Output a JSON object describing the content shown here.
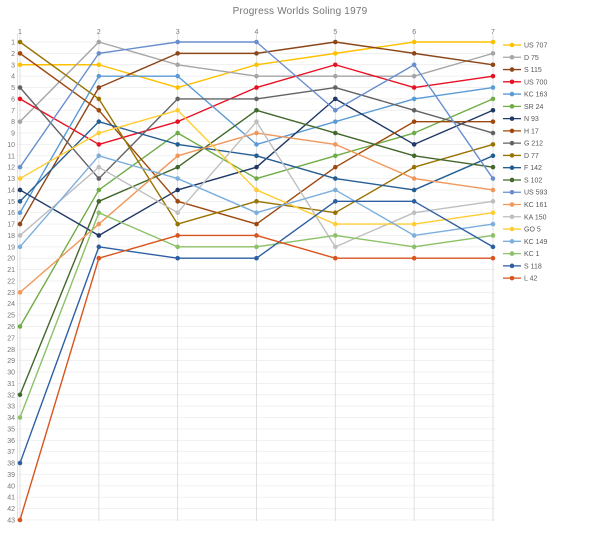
{
  "title": "Progress Worlds Soling 1979",
  "chart_data": {
    "type": "line",
    "subtype": "bump-rank-progression",
    "title": "Progress Worlds Soling 1979",
    "xlabel": "",
    "ylabel": "",
    "x_ticks": [
      1,
      2,
      3,
      4,
      5,
      6,
      7
    ],
    "y_ticks": [
      1,
      2,
      3,
      4,
      5,
      6,
      7,
      8,
      9,
      10,
      11,
      12,
      13,
      14,
      15,
      16,
      17,
      18,
      19,
      20,
      21,
      22,
      23,
      24,
      25,
      26,
      27,
      28,
      29,
      30,
      31,
      32,
      33,
      34,
      35,
      36,
      37,
      38,
      39,
      40,
      41,
      42,
      43
    ],
    "ylim": [
      1,
      43
    ],
    "y_inverted": true,
    "grid": true,
    "legend_position": "right",
    "axis_color": "#757575",
    "gridline_color": "#ebebeb",
    "column_line_color": "#d9d9d9",
    "series": [
      {
        "name": "US 707",
        "color": "#FFC000",
        "ranks": [
          3,
          3,
          5,
          3,
          2,
          1,
          1
        ]
      },
      {
        "name": "D 75",
        "color": "#A5A5A5",
        "ranks": [
          8,
          1,
          3,
          4,
          4,
          4,
          2
        ]
      },
      {
        "name": "S 115",
        "color": "#8C4618",
        "ranks": [
          17,
          5,
          2,
          2,
          1,
          2,
          3
        ]
      },
      {
        "name": "US 700",
        "color": "#E81123",
        "ranks": [
          6,
          10,
          8,
          5,
          3,
          5,
          4
        ]
      },
      {
        "name": "KC 163",
        "color": "#5B9BD5",
        "ranks": [
          16,
          4,
          4,
          10,
          8,
          6,
          5
        ]
      },
      {
        "name": "SR 24",
        "color": "#70AD47",
        "ranks": [
          26,
          14,
          9,
          13,
          11,
          9,
          6
        ]
      },
      {
        "name": "N 93",
        "color": "#1F3864",
        "ranks": [
          14,
          18,
          14,
          12,
          6,
          10,
          7
        ]
      },
      {
        "name": "H 17",
        "color": "#9E480E",
        "ranks": [
          2,
          7,
          15,
          17,
          12,
          8,
          8
        ]
      },
      {
        "name": "G 212",
        "color": "#636363",
        "ranks": [
          5,
          13,
          6,
          6,
          5,
          7,
          9
        ]
      },
      {
        "name": "D 77",
        "color": "#997300",
        "ranks": [
          1,
          6,
          17,
          15,
          16,
          12,
          10
        ]
      },
      {
        "name": "F 142",
        "color": "#255E91",
        "ranks": [
          15,
          8,
          10,
          11,
          13,
          14,
          11
        ]
      },
      {
        "name": "S 102",
        "color": "#43682B",
        "ranks": [
          32,
          15,
          12,
          7,
          9,
          11,
          12
        ]
      },
      {
        "name": "US 593",
        "color": "#698ED0",
        "ranks": [
          12,
          2,
          1,
          1,
          7,
          3,
          13
        ]
      },
      {
        "name": "KC 161",
        "color": "#F1975A",
        "ranks": [
          23,
          17,
          11,
          9,
          10,
          13,
          14
        ]
      },
      {
        "name": "KA 150",
        "color": "#BFBFBF",
        "ranks": [
          18,
          12,
          16,
          8,
          19,
          16,
          15
        ]
      },
      {
        "name": "GO 5",
        "color": "#FFCD33",
        "ranks": [
          13,
          9,
          7,
          14,
          17,
          17,
          16
        ]
      },
      {
        "name": "KC 149",
        "color": "#7CAFDD",
        "ranks": [
          19,
          11,
          13,
          16,
          14,
          18,
          17
        ]
      },
      {
        "name": "KC 1",
        "color": "#8CC168",
        "ranks": [
          34,
          16,
          19,
          19,
          18,
          19,
          18
        ]
      },
      {
        "name": "S 118",
        "color": "#2E5FA3",
        "ranks": [
          38,
          19,
          20,
          20,
          15,
          15,
          19
        ]
      },
      {
        "name": "L 42",
        "color": "#D9541E",
        "ranks": [
          43,
          20,
          18,
          18,
          20,
          20,
          20
        ]
      }
    ]
  }
}
